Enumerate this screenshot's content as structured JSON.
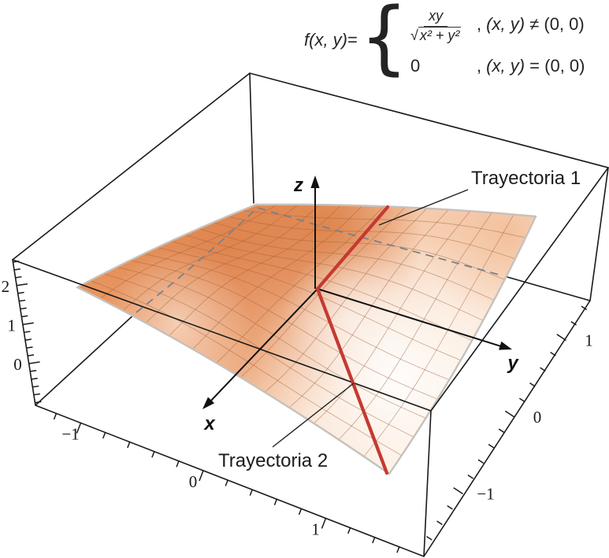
{
  "formula": {
    "lhs": "f(x, y)",
    "eq": " = ",
    "brace": "{",
    "numerator": "xy",
    "radical": "√",
    "radicand": "x² + y²",
    "comma": ", ",
    "vars": "(x, y)",
    "neq_rhs": " ≠ (0, 0)",
    "zero": "0",
    "eq_rhs": " = (0, 0)"
  },
  "axes_labels": {
    "x": "x",
    "y": "y",
    "z": "z"
  },
  "annotations": {
    "traj1": "Trayectoria 1",
    "traj2": "Trayectoria 2"
  },
  "axis_ticks": {
    "z": {
      "values": [
        0,
        1,
        2
      ],
      "labels": [
        "0",
        "1",
        "2"
      ]
    },
    "x": {
      "values": [
        -1,
        0,
        1
      ],
      "labels": [
        "−1",
        "0",
        "1"
      ]
    },
    "y": {
      "values": [
        -1,
        0,
        1
      ],
      "labels": [
        "−1",
        "0",
        "1"
      ]
    }
  },
  "colors": {
    "trajectory_red": "#c53a32",
    "surface_dark_orange": "#dc7a42",
    "surface_pale": "#fdf3ec",
    "hidden_edge_gray": "#7b8086",
    "box_edge": "#1a1a1a"
  },
  "chart_data": {
    "type": "surface",
    "title": "",
    "function": "f(x, y) = xy/√(x² + y²) si (x, y) ≠ (0, 0); f(x, y) = 0 si (x, y) = (0, 0)",
    "x_range": [
      -1.5,
      1.5
    ],
    "y_range": [
      -1.5,
      1.5
    ],
    "z_range": [
      -1.1,
      2.6
    ],
    "x_ticks": [
      -1,
      0,
      1
    ],
    "y_ticks": [
      -1,
      0,
      1
    ],
    "z_ticks": [
      0,
      1,
      2
    ],
    "xlabel": "x",
    "ylabel": "y",
    "zlabel": "z",
    "grid": true,
    "legend_position": "none",
    "series": [
      {
        "name": "Trayectoria 1",
        "type": "line",
        "color": "#c53a32",
        "description": "recta roja sobre la superficie que pasa por el origen hacia atrás-derecha"
      },
      {
        "name": "Trayectoria 2",
        "type": "line",
        "color": "#c53a32",
        "description": "recta roja sobre la superficie que pasa por el origen hacia delante"
      }
    ],
    "surface_values_sampled": [
      {
        "x": -1,
        "y": -1,
        "z": 0.71
      },
      {
        "x": -1,
        "y": 1,
        "z": -0.71
      },
      {
        "x": 0,
        "y": 0,
        "z": 0
      },
      {
        "x": 1,
        "y": -1,
        "z": -0.71
      },
      {
        "x": 1,
        "y": 1,
        "z": 0.71
      },
      {
        "x": 1.5,
        "y": 1.5,
        "z": 1.06
      },
      {
        "x": 1.5,
        "y": -1.5,
        "z": -1.06
      }
    ]
  }
}
